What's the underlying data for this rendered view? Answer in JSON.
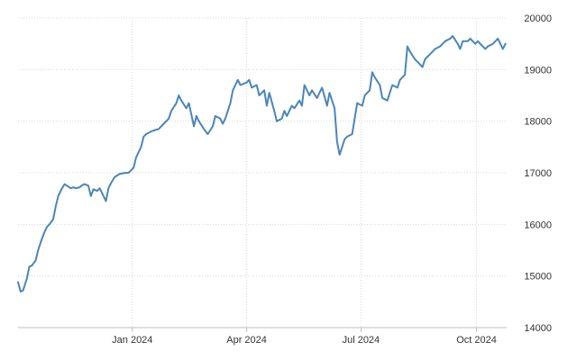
{
  "chart_data": {
    "type": "line",
    "title": "",
    "xlabel": "",
    "ylabel": "",
    "x_ticks": [
      {
        "date": "2024-01-01",
        "label": "Jan 2024"
      },
      {
        "date": "2024-04-01",
        "label": "Apr 2024"
      },
      {
        "date": "2024-07-01",
        "label": "Jul 2024"
      },
      {
        "date": "2024-10-01",
        "label": "Oct 2024"
      }
    ],
    "y_ticks": [
      14000,
      15000,
      16000,
      17000,
      18000,
      19000,
      20000
    ],
    "xlim": [
      "2023-10-02",
      "2024-10-25"
    ],
    "ylim": [
      14000,
      20000
    ],
    "y_axis_position": "right",
    "grid": true,
    "legend": "none",
    "colors": {
      "line": "#4a86b8",
      "grid": "#d9d9d9",
      "axis": "#bfbfbf",
      "text": "#333333"
    },
    "series": [
      {
        "x": [
          "2023-10-02",
          "2023-10-04",
          "2023-10-06",
          "2023-10-09",
          "2023-10-11",
          "2023-10-13",
          "2023-10-16",
          "2023-10-18",
          "2023-10-20",
          "2023-10-23",
          "2023-10-25",
          "2023-10-27",
          "2023-10-30",
          "2023-11-01",
          "2023-11-03",
          "2023-11-06",
          "2023-11-08",
          "2023-11-10",
          "2023-11-13",
          "2023-11-15",
          "2023-11-17",
          "2023-11-20",
          "2023-11-22",
          "2023-11-24",
          "2023-11-27",
          "2023-11-29",
          "2023-12-01",
          "2023-12-04",
          "2023-12-06",
          "2023-12-08",
          "2023-12-11",
          "2023-12-13",
          "2023-12-15",
          "2023-12-18",
          "2023-12-20",
          "2023-12-22",
          "2023-12-27",
          "2023-12-29",
          "2024-01-02",
          "2024-01-04",
          "2024-01-08",
          "2024-01-10",
          "2024-01-12",
          "2024-01-16",
          "2024-01-18",
          "2024-01-22",
          "2024-01-24",
          "2024-01-26",
          "2024-01-30",
          "2024-02-01",
          "2024-02-05",
          "2024-02-07",
          "2024-02-09",
          "2024-02-13",
          "2024-02-15",
          "2024-02-19",
          "2024-02-21",
          "2024-02-23",
          "2024-02-27",
          "2024-03-01",
          "2024-03-05",
          "2024-03-07",
          "2024-03-11",
          "2024-03-13",
          "2024-03-15",
          "2024-03-19",
          "2024-03-21",
          "2024-03-25",
          "2024-03-27",
          "2024-04-01",
          "2024-04-03",
          "2024-04-05",
          "2024-04-09",
          "2024-04-11",
          "2024-04-15",
          "2024-04-17",
          "2024-04-19",
          "2024-04-23",
          "2024-04-25",
          "2024-04-29",
          "2024-05-01",
          "2024-05-03",
          "2024-05-07",
          "2024-05-09",
          "2024-05-13",
          "2024-05-15",
          "2024-05-17",
          "2024-05-21",
          "2024-05-23",
          "2024-05-27",
          "2024-05-29",
          "2024-05-31",
          "2024-06-04",
          "2024-06-06",
          "2024-06-10",
          "2024-06-12",
          "2024-06-14",
          "2024-06-18",
          "2024-06-20",
          "2024-06-24",
          "2024-06-26",
          "2024-06-28",
          "2024-07-02",
          "2024-07-04",
          "2024-07-08",
          "2024-07-10",
          "2024-07-12",
          "2024-07-16",
          "2024-07-18",
          "2024-07-22",
          "2024-07-24",
          "2024-07-26",
          "2024-07-30",
          "2024-08-01",
          "2024-08-05",
          "2024-08-07",
          "2024-08-09",
          "2024-08-13",
          "2024-08-15",
          "2024-08-19",
          "2024-08-21",
          "2024-08-23",
          "2024-08-27",
          "2024-08-29",
          "2024-09-02",
          "2024-09-04",
          "2024-09-06",
          "2024-09-10",
          "2024-09-12",
          "2024-09-16",
          "2024-09-18",
          "2024-09-20",
          "2024-09-24",
          "2024-09-26",
          "2024-09-30",
          "2024-10-02",
          "2024-10-04",
          "2024-10-08",
          "2024-10-10",
          "2024-10-14",
          "2024-10-16",
          "2024-10-18",
          "2024-10-22",
          "2024-10-24"
        ],
        "values": [
          14880,
          14700,
          14720,
          14950,
          15180,
          15200,
          15300,
          15500,
          15650,
          15850,
          15950,
          16000,
          16100,
          16350,
          16550,
          16700,
          16780,
          16750,
          16700,
          16720,
          16700,
          16720,
          16760,
          16780,
          16750,
          16550,
          16680,
          16650,
          16700,
          16600,
          16450,
          16700,
          16800,
          16920,
          16950,
          16980,
          17000,
          17000,
          17100,
          17300,
          17500,
          17700,
          17750,
          17800,
          17820,
          17850,
          17900,
          17950,
          18050,
          18200,
          18350,
          18500,
          18400,
          18250,
          18350,
          17900,
          18100,
          18000,
          17850,
          17750,
          17900,
          18100,
          18050,
          17950,
          18050,
          18350,
          18600,
          18800,
          18700,
          18750,
          18800,
          18650,
          18700,
          18500,
          18600,
          18300,
          18550,
          18200,
          18000,
          18050,
          18200,
          18100,
          18300,
          18250,
          18400,
          18300,
          18700,
          18500,
          18600,
          18450,
          18550,
          18650,
          18300,
          18550,
          18250,
          17600,
          17350,
          17650,
          17700,
          17750,
          18050,
          18350,
          18300,
          18500,
          18600,
          18950,
          18850,
          18700,
          18450,
          18400,
          18550,
          18700,
          18650,
          18800,
          18900,
          19450,
          19350,
          19200,
          19150,
          19050,
          19200,
          19250,
          19350,
          19400,
          19450,
          19500,
          19550,
          19600,
          19650,
          19500,
          19400,
          19550,
          19550,
          19600,
          19500,
          19550,
          19500,
          19400,
          19450,
          19500,
          19550,
          19600,
          19400,
          19500
        ],
        "color": "#4a86b8"
      }
    ]
  }
}
